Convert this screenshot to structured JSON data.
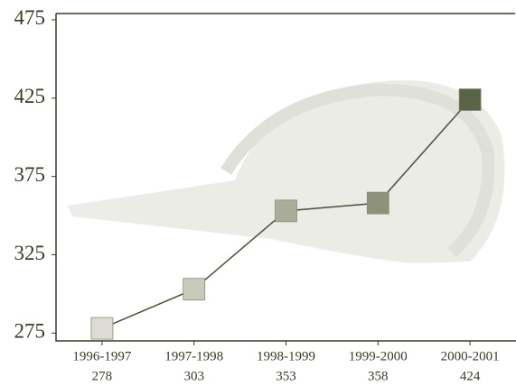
{
  "chart_data": {
    "type": "line",
    "categories": [
      "1996-1997",
      "1997-1998",
      "1998-1999",
      "1999-2000",
      "2000-2001"
    ],
    "values": [
      278,
      303,
      353,
      358,
      424
    ],
    "color": "#4a5038",
    "marker_colors": [
      "#dcdcd4",
      "#cacabb",
      "#a9ad98",
      "#8d9279",
      "#5b6347"
    ],
    "ylim": [
      270,
      479
    ],
    "yticks": [
      275,
      325,
      375,
      425,
      475
    ],
    "grid": false
  }
}
